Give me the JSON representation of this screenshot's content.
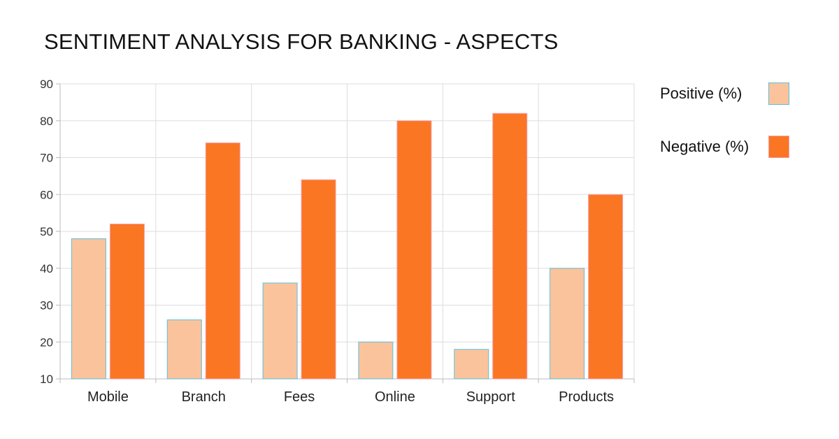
{
  "chart_data": {
    "type": "bar",
    "title": "SENTIMENT ANALYSIS FOR BANKING - ASPECTS",
    "categories": [
      "Mobile",
      "Branch",
      "Fees",
      "Online",
      "Support",
      "Products"
    ],
    "series": [
      {
        "name": "Positive (%)",
        "color": "#fbc39b",
        "values": [
          48,
          26,
          36,
          20,
          18,
          40
        ]
      },
      {
        "name": "Negative (%)",
        "color": "#fb7622",
        "values": [
          52,
          74,
          64,
          80,
          82,
          60
        ]
      }
    ],
    "ylim": [
      10,
      90
    ],
    "yticks": [
      10,
      20,
      30,
      40,
      50,
      60,
      70,
      80,
      90
    ],
    "grid": true,
    "legend_position": "top-right",
    "xlabel": "",
    "ylabel": ""
  }
}
